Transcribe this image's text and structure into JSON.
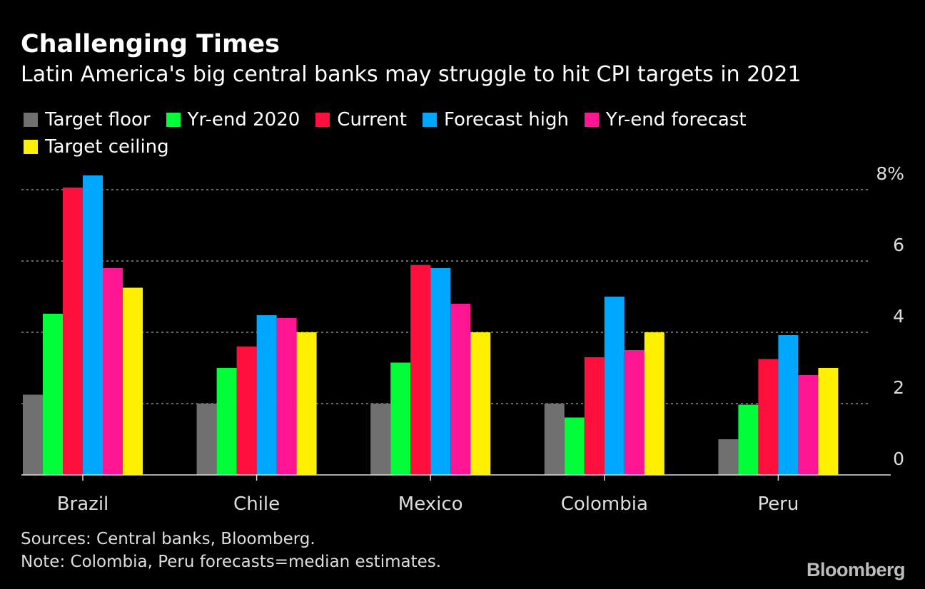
{
  "header": {
    "title": "Challenging Times",
    "subtitle": "Latin America's big central banks may struggle to hit CPI targets in 2021"
  },
  "footer": {
    "sources": "Sources: Central banks, Bloomberg.",
    "note": "Note: Colombia, Peru forecasts=median estimates.",
    "logo": "Bloomberg"
  },
  "chart_data": {
    "type": "bar",
    "title": "Challenging Times",
    "subtitle": "Latin America's big central banks may struggle to hit CPI targets in 2021",
    "xlabel": "",
    "ylabel": "",
    "ylim": [
      0,
      8
    ],
    "y_ticks": [
      0,
      2,
      4,
      6,
      8
    ],
    "y_tick_labels": [
      "0",
      "2",
      "4",
      "6",
      "8%"
    ],
    "y_axis_side": "right",
    "grid": true,
    "legend_position": "top",
    "categories": [
      "Brazil",
      "Chile",
      "Mexico",
      "Colombia",
      "Peru"
    ],
    "series": [
      {
        "name": "Target floor",
        "color": "#707070",
        "values": [
          2.25,
          2.0,
          2.0,
          2.0,
          1.0
        ]
      },
      {
        "name": "Yr-end 2020",
        "color": "#00ff38",
        "values": [
          4.52,
          3.0,
          3.15,
          1.61,
          1.97
        ]
      },
      {
        "name": "Current",
        "color": "#ff0f3c",
        "values": [
          8.06,
          3.6,
          5.89,
          3.3,
          3.25
        ]
      },
      {
        "name": "Forecast high",
        "color": "#00a7ff",
        "values": [
          8.4,
          4.48,
          5.8,
          5.0,
          3.92
        ]
      },
      {
        "name": "Yr-end forecast",
        "color": "#ff1493",
        "values": [
          5.8,
          4.4,
          4.8,
          3.5,
          2.8
        ]
      },
      {
        "name": "Target ceiling",
        "color": "#ffef00",
        "values": [
          5.25,
          4.0,
          4.0,
          4.0,
          3.0
        ]
      }
    ]
  }
}
